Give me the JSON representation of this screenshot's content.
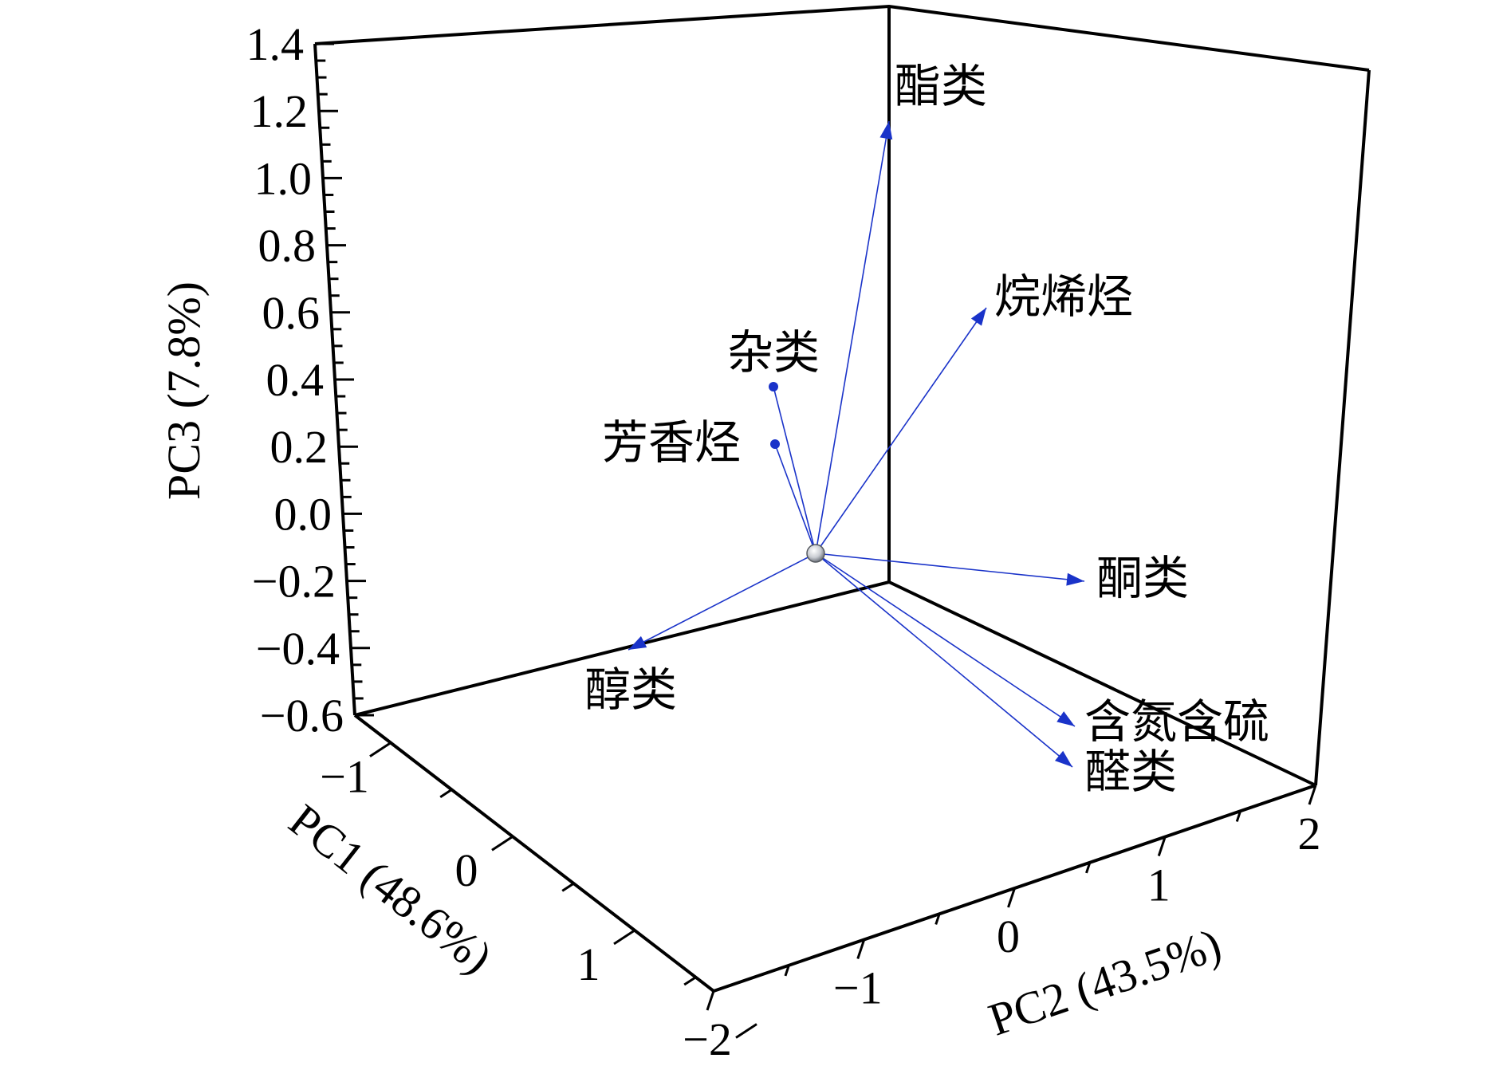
{
  "chart_data": {
    "type": "scatter",
    "subtype": "3d-loading-vectors",
    "xlabel": "PC1 (48.6%)",
    "ylabel": "PC2 (43.5%)",
    "zlabel": "PC3 (7.8%)",
    "zlim": [
      -0.6,
      1.4
    ],
    "z_ticks": [
      "−0.6",
      "−0.4",
      "−0.2",
      "0.0",
      "0.2",
      "0.4",
      "0.6",
      "0.8",
      "1.0",
      "1.2",
      "1.4"
    ],
    "x_ticks": [
      "−1",
      "0",
      "1"
    ],
    "y_ticks": [
      "−2",
      "−1",
      "0",
      "1",
      "2"
    ],
    "vector_color": "#1a33c9",
    "vectors": [
      {
        "name": "酯类",
        "z": 1.2
      },
      {
        "name": "烷烯烃",
        "z": 0.6
      },
      {
        "name": "杂类",
        "z": 0.4
      },
      {
        "name": "芳香烃",
        "z": 0.25
      },
      {
        "name": "酮类",
        "z": -0.15
      },
      {
        "name": "醇类",
        "z": -0.35
      },
      {
        "name": "含氮含硫",
        "z": -0.55
      },
      {
        "name": "醛类",
        "z": -0.6
      }
    ]
  }
}
